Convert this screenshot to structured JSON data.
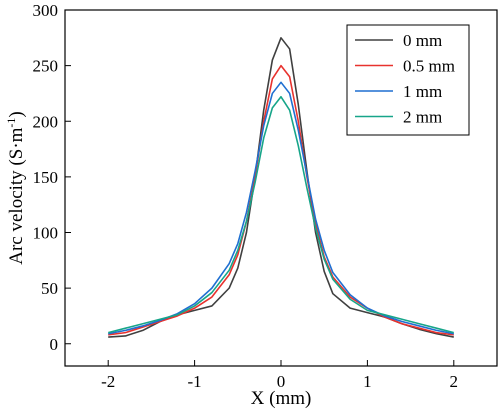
{
  "chart_data": {
    "type": "line",
    "title": "",
    "xlabel": "X (mm)",
    "ylabel_main": "Arc velocity (S·m",
    "ylabel_sup": "-1",
    "ylabel_close": ")",
    "xlim": [
      -2.5,
      2.5
    ],
    "ylim": [
      -20,
      300
    ],
    "xticks": [
      -2,
      -1,
      0,
      1,
      2
    ],
    "xtick_labels": [
      "-2",
      "-1",
      "0",
      "1",
      "2"
    ],
    "yticks": [
      0,
      50,
      100,
      150,
      200,
      250,
      300
    ],
    "ytick_labels": [
      "0",
      "50",
      "100",
      "150",
      "200",
      "250",
      "300"
    ],
    "grid": false,
    "legend_position": "top-right",
    "series": [
      {
        "name": "0 mm",
        "color": "#404040",
        "x": [
          -2,
          -1.8,
          -1.6,
          -1.4,
          -1.2,
          -1.0,
          -0.8,
          -0.6,
          -0.5,
          -0.4,
          -0.3,
          -0.2,
          -0.1,
          0,
          0.1,
          0.2,
          0.3,
          0.4,
          0.5,
          0.6,
          0.8,
          1.0,
          1.2,
          1.4,
          1.6,
          1.8,
          2
        ],
        "y": [
          6,
          7,
          12,
          20,
          26,
          30,
          34,
          50,
          68,
          100,
          150,
          210,
          255,
          275,
          265,
          215,
          155,
          100,
          65,
          45,
          32,
          28,
          24,
          18,
          13,
          9,
          6
        ]
      },
      {
        "name": "0.5 mm",
        "color": "#e8322e",
        "x": [
          -2,
          -1.8,
          -1.6,
          -1.4,
          -1.2,
          -1.0,
          -0.8,
          -0.6,
          -0.5,
          -0.4,
          -0.3,
          -0.2,
          -0.1,
          0,
          0.1,
          0.2,
          0.3,
          0.4,
          0.5,
          0.6,
          0.8,
          1.0,
          1.2,
          1.4,
          1.6,
          1.8,
          2
        ],
        "y": [
          8,
          10,
          15,
          20,
          25,
          32,
          42,
          62,
          80,
          110,
          150,
          200,
          238,
          250,
          240,
          200,
          150,
          108,
          78,
          60,
          42,
          32,
          24,
          18,
          14,
          10,
          8
        ]
      },
      {
        "name": "1 mm",
        "color": "#1f6fd1",
        "x": [
          -2,
          -1.8,
          -1.6,
          -1.4,
          -1.2,
          -1.0,
          -0.8,
          -0.6,
          -0.5,
          -0.4,
          -0.3,
          -0.2,
          -0.1,
          0,
          0.1,
          0.2,
          0.3,
          0.4,
          0.5,
          0.6,
          0.8,
          1.0,
          1.2,
          1.4,
          1.6,
          1.8,
          2
        ],
        "y": [
          9,
          12,
          16,
          21,
          27,
          36,
          50,
          72,
          90,
          118,
          155,
          196,
          225,
          235,
          225,
          192,
          152,
          112,
          84,
          64,
          44,
          32,
          25,
          20,
          16,
          12,
          9
        ]
      },
      {
        "name": "2 mm",
        "color": "#17a589",
        "x": [
          -2,
          -1.8,
          -1.6,
          -1.4,
          -1.2,
          -1.0,
          -0.8,
          -0.6,
          -0.5,
          -0.4,
          -0.3,
          -0.2,
          -0.1,
          0,
          0.1,
          0.2,
          0.3,
          0.4,
          0.5,
          0.6,
          0.8,
          1.0,
          1.2,
          1.4,
          1.6,
          1.8,
          2
        ],
        "y": [
          10,
          14,
          18,
          22,
          26,
          34,
          46,
          66,
          84,
          110,
          145,
          185,
          212,
          222,
          210,
          178,
          140,
          104,
          76,
          58,
          40,
          30,
          26,
          22,
          18,
          14,
          10
        ]
      }
    ]
  }
}
